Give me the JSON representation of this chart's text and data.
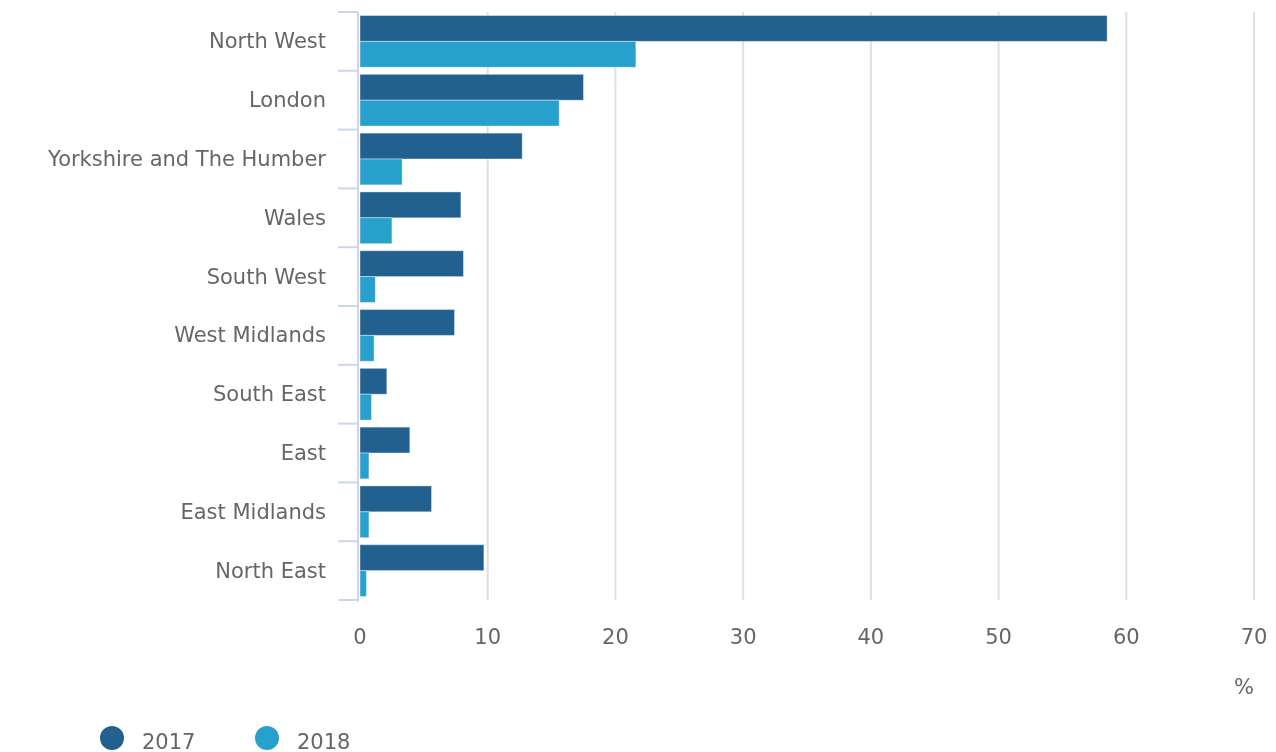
{
  "chart_data": {
    "type": "bar",
    "orientation": "horizontal",
    "xlabel": "%",
    "categories": [
      "North West",
      "London",
      "Yorkshire and The Humber",
      "Wales",
      "South West",
      "West Midlands",
      "South East",
      "East",
      "East Midlands",
      "North East"
    ],
    "series": [
      {
        "name": "2017",
        "color": "#21608f",
        "values": [
          58.5,
          17.5,
          12.7,
          7.9,
          8.1,
          7.4,
          2.1,
          3.9,
          5.6,
          9.7
        ]
      },
      {
        "name": "2018",
        "color": "#27a1cc",
        "values": [
          21.6,
          15.6,
          3.3,
          2.5,
          1.2,
          1.1,
          0.9,
          0.7,
          0.7,
          0.5
        ]
      }
    ],
    "xlim": [
      0,
      70
    ],
    "xticks": [
      0,
      10,
      20,
      30,
      40,
      50,
      60,
      70
    ],
    "grid": "x",
    "legend": "bottom left"
  }
}
